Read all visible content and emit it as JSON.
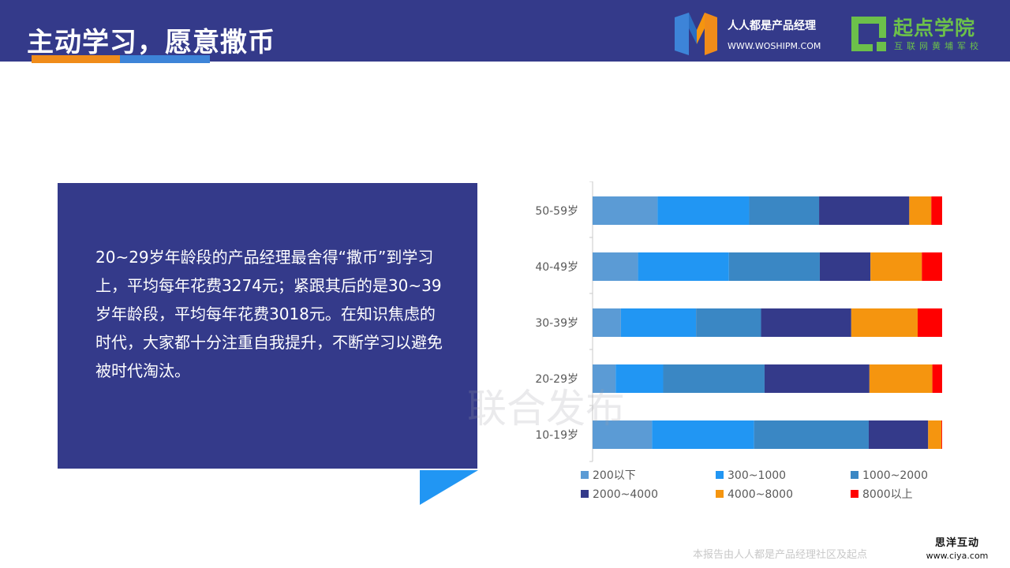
{
  "header": {
    "title": "主动学习，愿意撒币",
    "logo1_name": "人人都是产品经理",
    "logo1_url": "WWW.WOSHIPM.COM",
    "logo2_name": "起点学院",
    "logo2_sub": "互联网黄埔军校"
  },
  "textbox": {
    "body": "20~29岁年龄段的产品经理最舍得“撒币”到学习上，平均每年花费3274元；紧跟其后的是30~39岁年龄段，平均每年花费3018元。在知识焦虑的时代，大家都十分注重自我提升，不断学习以避免被时代淘汰。"
  },
  "watermark": "联合发布",
  "footer": {
    "note": "本报告由人人都是产品经理社区及起点",
    "stamp_top": "思洋互动",
    "stamp_bottom": "www.ciya.com"
  },
  "colors": {
    "header_bg": "#343a8a",
    "accent_orange": "#f08c1a",
    "accent_blue": "#3d84d8"
  },
  "chart_data": {
    "type": "bar",
    "orientation": "horizontal",
    "stacked": "100%",
    "categories": [
      "50-59岁",
      "40-49岁",
      "30-39岁",
      "20-29岁",
      "10-19岁"
    ],
    "series": [
      {
        "name": "200以下",
        "color": "#5b9bd5",
        "values": [
          18.6,
          13.0,
          8.1,
          6.6,
          17.0
        ]
      },
      {
        "name": "300~1000",
        "color": "#2196f3",
        "values": [
          26.2,
          26.0,
          21.5,
          13.6,
          29.2
        ]
      },
      {
        "name": "1000~2000",
        "color": "#3a87c4",
        "values": [
          20.0,
          26.0,
          18.6,
          29.0,
          32.8
        ]
      },
      {
        "name": "2000~4000",
        "color": "#343a8a",
        "values": [
          25.8,
          14.5,
          25.8,
          30.0,
          17.0
        ]
      },
      {
        "name": "4000~8000",
        "color": "#f5950f",
        "values": [
          6.3,
          14.7,
          19.0,
          18.0,
          3.8
        ]
      },
      {
        "name": "8000以上",
        "color": "#ff0000",
        "values": [
          3.1,
          5.8,
          7.0,
          2.8,
          0.2
        ]
      }
    ],
    "legend_position": "bottom",
    "grid": false
  }
}
